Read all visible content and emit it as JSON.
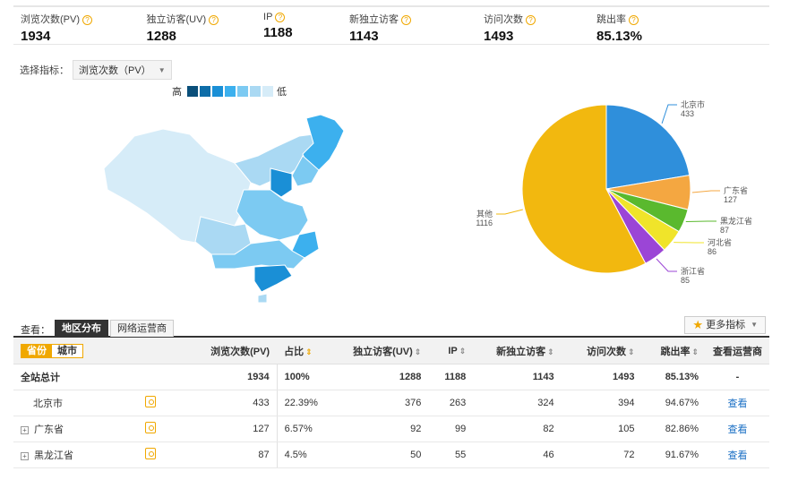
{
  "summary": [
    {
      "label": "浏览次数(PV)",
      "value": "1934"
    },
    {
      "label": "独立访客(UV)",
      "value": "1288"
    },
    {
      "label": "IP",
      "value": "1188"
    },
    {
      "label": "新独立访客",
      "value": "1143"
    },
    {
      "label": "访问次数",
      "value": "1493"
    },
    {
      "label": "跳出率",
      "value": "85.13%"
    }
  ],
  "selector": {
    "label": "选择指标：",
    "value": "浏览次数（PV）"
  },
  "legend": {
    "high": "高",
    "low": "低",
    "colors": [
      "#0a4f7a",
      "#0e6da8",
      "#1a8fd6",
      "#3cb0ee",
      "#7ccaf2",
      "#aad9f3",
      "#d6ecf8"
    ]
  },
  "chart_data": {
    "type": "pie",
    "slices": [
      {
        "label": "北京市",
        "value": 433,
        "color": "#2f8fdb"
      },
      {
        "label": "广东省",
        "value": 127,
        "color": "#f4a741"
      },
      {
        "label": "黑龙江省",
        "value": 87,
        "color": "#5ab92e"
      },
      {
        "label": "河北省",
        "value": 86,
        "color": "#f0e42a"
      },
      {
        "label": "浙江省",
        "value": 85,
        "color": "#9b45d6"
      },
      {
        "label": "其他",
        "value": 1116,
        "color": "#f2b80f"
      }
    ]
  },
  "view": {
    "label": "查看：",
    "tab_region": "地区分布",
    "tab_isp": "网络运营商",
    "more_metrics": "更多指标"
  },
  "table": {
    "toggle_province": "省份",
    "toggle_city": "城市",
    "headers": {
      "pv": "浏览次数(PV)",
      "share": "占比",
      "uv": "独立访客(UV)",
      "ip": "IP",
      "new_uv": "新独立访客",
      "visits": "访问次数",
      "bounce": "跳出率",
      "isp": "查看运营商"
    },
    "total": {
      "name": "全站总计",
      "pv": "1934",
      "share": "100%",
      "uv": "1288",
      "ip": "1188",
      "new_uv": "1143",
      "visits": "1493",
      "bounce": "85.13%",
      "isp": "-"
    },
    "rows": [
      {
        "name": "北京市",
        "pv": "433",
        "share": "22.39%",
        "uv": "376",
        "ip": "263",
        "new_uv": "324",
        "visits": "394",
        "bounce": "94.67%",
        "isp": "查看"
      },
      {
        "name": "广东省",
        "pv": "127",
        "share": "6.57%",
        "uv": "92",
        "ip": "99",
        "new_uv": "82",
        "visits": "105",
        "bounce": "82.86%",
        "isp": "查看"
      },
      {
        "name": "黑龙江省",
        "pv": "87",
        "share": "4.5%",
        "uv": "50",
        "ip": "55",
        "new_uv": "46",
        "visits": "72",
        "bounce": "91.67%",
        "isp": "查看"
      }
    ]
  }
}
